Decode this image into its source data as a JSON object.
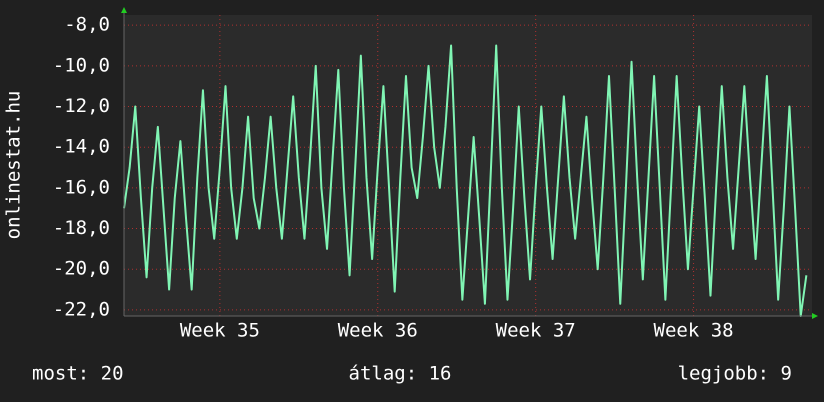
{
  "chart_data": {
    "type": "line",
    "y_label": "onlinestat.hu",
    "ylim": [
      -22.3,
      -7.5
    ],
    "yticks": [
      {
        "value": -8,
        "label": "-8,0"
      },
      {
        "value": -10,
        "label": "-10,0"
      },
      {
        "value": -12,
        "label": "-12,0"
      },
      {
        "value": -14,
        "label": "-14,0"
      },
      {
        "value": -16,
        "label": "-16,0"
      },
      {
        "value": -18,
        "label": "-18,0"
      },
      {
        "value": -20,
        "label": "-20,0"
      },
      {
        "value": -22,
        "label": "-22,0"
      }
    ],
    "xlim": [
      0,
      122
    ],
    "xticks": [
      {
        "value": 17,
        "label": "Week 35"
      },
      {
        "value": 45,
        "label": "Week 36"
      },
      {
        "value": 73,
        "label": "Week 37"
      },
      {
        "value": 101,
        "label": "Week 38"
      }
    ],
    "grid": true,
    "color": "#80f5b4",
    "values": [
      -17,
      -15,
      -12,
      -16.5,
      -20.4,
      -16,
      -13,
      -17,
      -21,
      -16.5,
      -13.7,
      -17.5,
      -21,
      -15.5,
      -11.2,
      -16,
      -18.5,
      -15,
      -11,
      -16,
      -18.5,
      -16,
      -12.5,
      -16.5,
      -18,
      -15.5,
      -12.5,
      -16,
      -18.5,
      -15,
      -11.5,
      -15.5,
      -18.5,
      -14.5,
      -10,
      -16,
      -19,
      -14.5,
      -10.2,
      -16,
      -20.3,
      -15,
      -9.5,
      -15.5,
      -19.5,
      -15,
      -11,
      -16,
      -21.1,
      -15.5,
      -10.5,
      -15,
      -16.5,
      -13.5,
      -10,
      -14,
      -16,
      -13,
      -9,
      -16,
      -21.5,
      -17.5,
      -13.5,
      -17.5,
      -21.7,
      -15.5,
      -9,
      -16,
      -21.5,
      -17,
      -12,
      -16.5,
      -20.5,
      -16,
      -12,
      -16,
      -19.5,
      -15.5,
      -11.5,
      -15.5,
      -18.5,
      -15.5,
      -12.5,
      -16.5,
      -20,
      -15.5,
      -10.5,
      -16,
      -21.7,
      -16,
      -9.8,
      -15.5,
      -20.5,
      -15.5,
      -10.5,
      -16,
      -21.5,
      -16,
      -10.5,
      -15.5,
      -20,
      -16,
      -12,
      -16.5,
      -21.3,
      -16,
      -11,
      -15.5,
      -19,
      -15,
      -11,
      -15.5,
      -19.5,
      -15,
      -10.5,
      -16,
      -21.5,
      -17,
      -12,
      -17,
      -22.3,
      -20.3
    ],
    "footer": {
      "current": "most: 20",
      "average": "átlag: 16",
      "best": "legjobb: 9"
    }
  }
}
